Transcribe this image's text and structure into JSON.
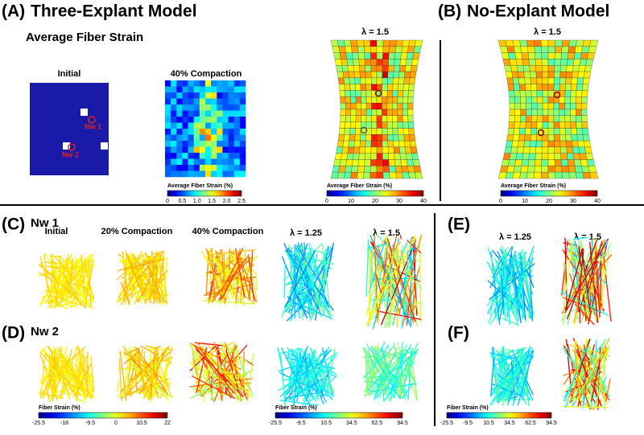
{
  "panel_a": {
    "label": "(A)",
    "title": "Three-Explant Model",
    "subtitle": "Average Fiber Strain",
    "columns": [
      "Initial",
      "40% Compaction",
      "λ = 1.5"
    ],
    "explants": [
      "Nw 1",
      "Nw 2"
    ],
    "colorbars": [
      {
        "title": "Average Fiber Strain (%)",
        "ticks": [
          "0",
          "0.5",
          "1.0",
          "1.5",
          "2.0",
          "2.5"
        ]
      },
      {
        "title": "Average Fiber Strain (%)",
        "ticks": [
          "0",
          "10",
          "20",
          "30",
          "40"
        ]
      }
    ]
  },
  "panel_b": {
    "label": "(B)",
    "title": "No-Explant Model",
    "columns": [
      "λ = 1.5"
    ],
    "colorbar": {
      "title": "Average Fiber Strain (%)",
      "ticks": [
        "0",
        "10",
        "20",
        "30",
        "40"
      ]
    }
  },
  "panel_c": {
    "label": "(C)",
    "network": "Nw 1",
    "columns": [
      "Initial",
      "20% Compaction",
      "40% Compaction",
      "λ = 1.25",
      "λ = 1.5"
    ]
  },
  "panel_d": {
    "label": "(D)",
    "network": "Nw 2"
  },
  "panel_e": {
    "label": "(E)",
    "columns": [
      "λ = 1.25",
      "λ = 1.5"
    ]
  },
  "panel_f": {
    "label": "(F)"
  },
  "fiber_colorbars": [
    {
      "title": "Fiber Strain (%)",
      "ticks": [
        "-25.5",
        "-18",
        "-9.5",
        "0",
        "10.5",
        "22"
      ]
    },
    {
      "title": "Fiber Strain (%)",
      "ticks": [
        "-25.5",
        "-9.5",
        "10.5",
        "34.5",
        "62.5",
        "94.5"
      ]
    },
    {
      "title": "Fiber Strain (%)",
      "ticks": [
        "-25.5",
        "-9.5",
        "10.5",
        "34.5",
        "62.5",
        "94.5"
      ]
    }
  ]
}
